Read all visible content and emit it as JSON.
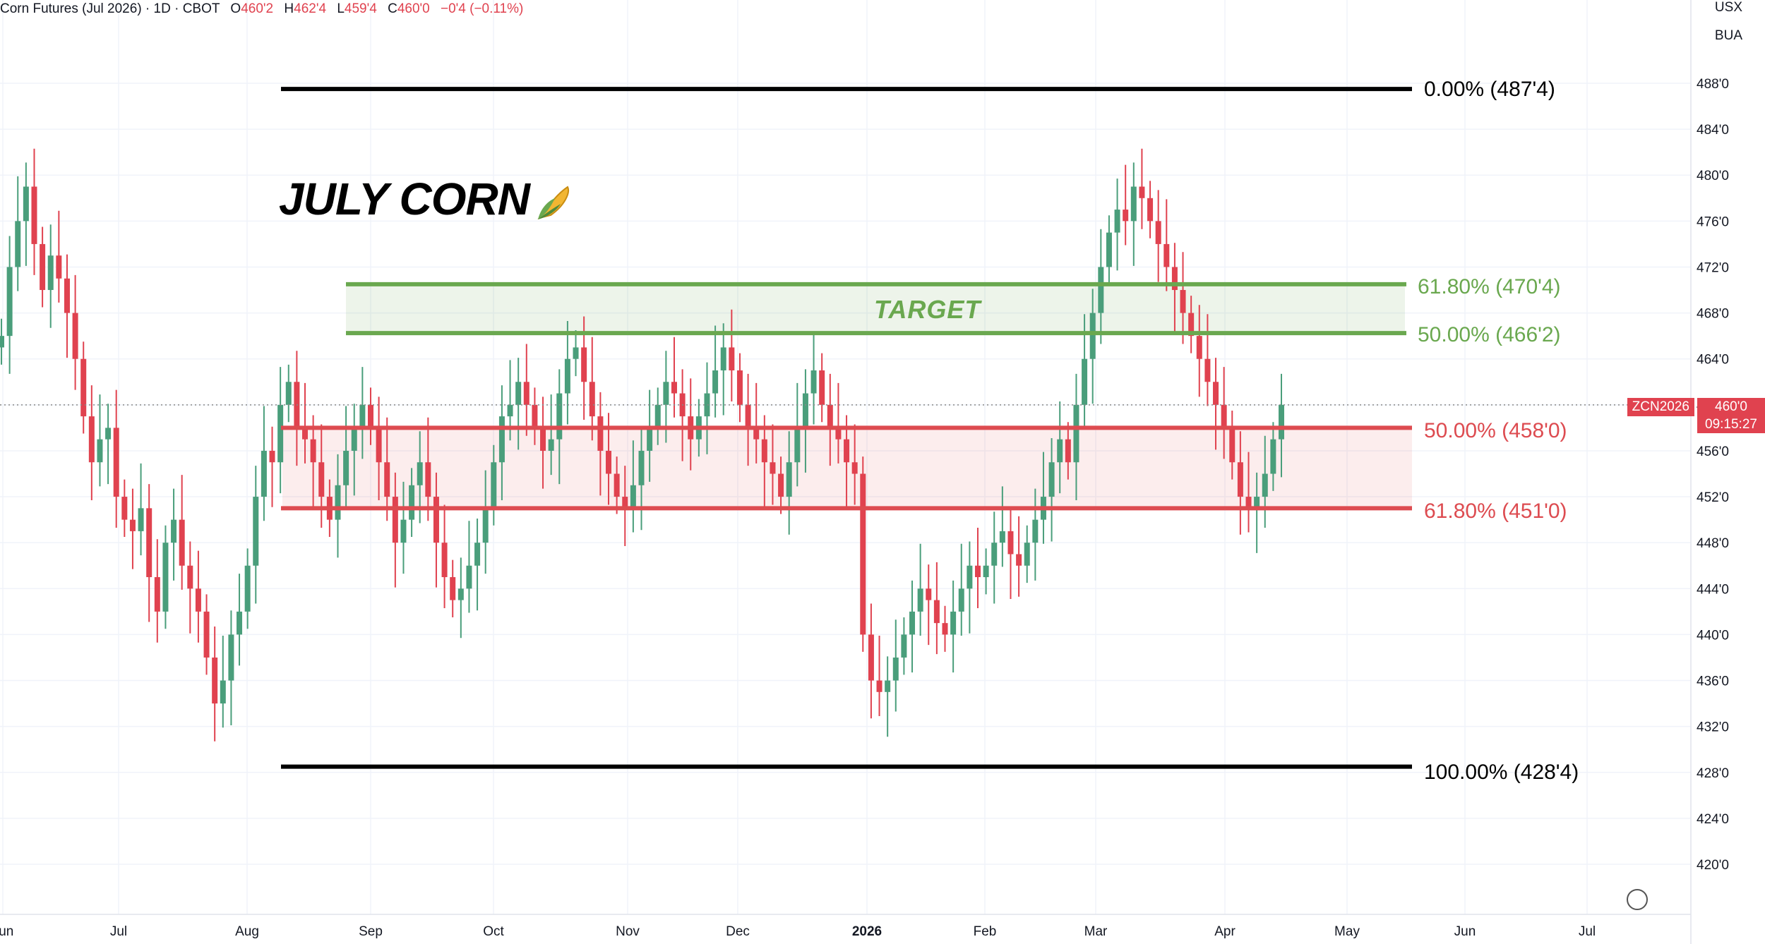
{
  "header": {
    "symbol_name": "Corn Futures (Jul 2026) · 1D · CBOT",
    "open_label": "O",
    "open": "460'2",
    "high_label": "H",
    "high": "462'4",
    "low_label": "L",
    "low": "459'4",
    "close_label": "C",
    "close": "460'0",
    "change": "−0'4 (−0.11%)"
  },
  "currency": {
    "top": "USX",
    "bottom": "BUA"
  },
  "annotation": {
    "title": "JULY CORN",
    "target_label": "TARGET"
  },
  "price_tag": {
    "symbol": "ZCN2026",
    "price": "460'0",
    "countdown": "09:15:27"
  },
  "colors": {
    "up": "#4a9e7b",
    "down": "#e0424f",
    "fib_green": "#6aa84f",
    "fib_red": "#dd4b50",
    "fib_black": "#000000"
  },
  "chart_data": {
    "type": "candlestick",
    "title": "Corn Futures (Jul 2026)",
    "interval": "1D",
    "exchange": "CBOT",
    "y_ticks": [
      "420'0",
      "424'0",
      "428'0",
      "432'0",
      "436'0",
      "440'0",
      "444'0",
      "448'0",
      "452'0",
      "456'0",
      "460'0",
      "464'0",
      "468'0",
      "472'0",
      "476'0",
      "480'0",
      "484'0",
      "488'0"
    ],
    "ylim": [
      417,
      490
    ],
    "x_ticks": [
      "Jun",
      "Jul",
      "Aug",
      "Sep",
      "Oct",
      "Nov",
      "Dec",
      "2026",
      "Feb",
      "Mar",
      "Apr",
      "May",
      "Jun",
      "Jul"
    ],
    "last_price": 460.0,
    "fib_levels": [
      {
        "label": "0.00% (487'4)",
        "value": 487.5,
        "color": "black"
      },
      {
        "label": "61.80% (470'4)",
        "value": 470.5,
        "color": "green"
      },
      {
        "label": "50.00% (466'2)",
        "value": 466.25,
        "color": "green"
      },
      {
        "label": "50.00% (458'0)",
        "value": 458.0,
        "color": "red"
      },
      {
        "label": "61.80% (451'0)",
        "value": 451.0,
        "color": "red"
      },
      {
        "label": "100.00% (428'4)",
        "value": 428.5,
        "color": "black"
      }
    ],
    "target_zone": [
      466.25,
      470.5
    ],
    "support_zone": [
      451.0,
      458.0
    ],
    "closes": [
      466,
      472,
      476,
      479,
      474,
      470,
      473,
      471,
      468,
      464,
      459,
      455,
      457,
      458,
      452,
      450,
      449,
      451,
      445,
      442,
      448,
      450,
      446,
      444,
      442,
      438,
      434,
      436,
      440,
      442,
      446,
      452,
      456,
      455,
      460,
      462,
      458,
      457,
      455,
      452,
      450,
      453,
      456,
      458,
      460,
      458,
      455,
      452,
      448,
      450,
      453,
      455,
      452,
      448,
      445,
      443,
      444,
      446,
      448,
      451,
      455,
      459,
      460,
      462,
      460,
      458,
      456,
      457,
      461,
      464,
      465,
      462,
      459,
      456,
      454,
      452,
      451,
      453,
      456,
      458,
      460,
      462,
      461,
      459,
      457,
      459,
      461,
      463,
      465,
      463,
      460,
      458,
      457,
      455,
      454,
      452,
      455,
      458,
      461,
      463,
      460,
      458,
      457,
      455,
      454,
      440,
      436,
      435,
      436,
      438,
      440,
      442,
      444,
      443,
      441,
      440,
      442,
      444,
      446,
      445,
      446,
      448,
      449,
      447,
      446,
      448,
      450,
      452,
      455,
      457,
      455,
      460,
      464,
      468,
      472,
      475,
      477,
      476,
      479,
      478,
      476,
      474,
      472,
      470,
      468,
      466,
      464,
      462,
      460,
      458,
      455,
      452,
      451,
      452,
      454,
      457,
      460
    ]
  }
}
